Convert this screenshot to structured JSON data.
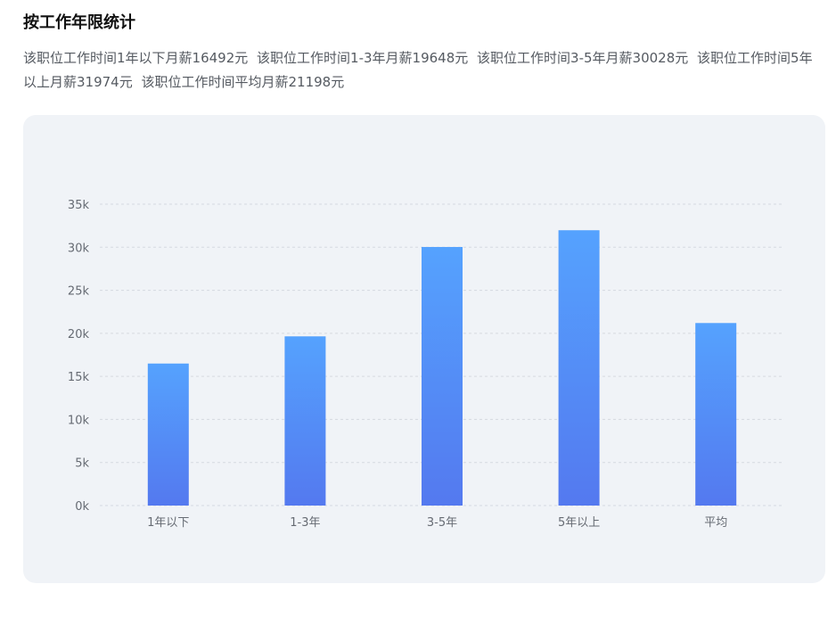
{
  "page": {
    "title": "按工作年限统计",
    "summary": [
      "该职位工作时间1年以下月薪16492元",
      "该职位工作时间1-3年月薪19648元",
      "该职位工作时间3-5年月薪30028元",
      "该职位工作时间5年以上月薪31974元",
      "该职位工作时间平均月薪21198元"
    ]
  },
  "chart_data": {
    "type": "bar",
    "categories": [
      "1年以下",
      "1-3年",
      "3-5年",
      "5年以上",
      "平均"
    ],
    "values": [
      16492,
      19648,
      30028,
      31974,
      21198
    ],
    "title": "",
    "xlabel": "",
    "ylabel": "",
    "ylim": [
      0,
      35000
    ],
    "y_ticks": [
      0,
      5000,
      10000,
      15000,
      20000,
      25000,
      30000,
      35000
    ],
    "y_tick_labels": [
      "0k",
      "5k",
      "10k",
      "15k",
      "20k",
      "25k",
      "30k",
      "35k"
    ],
    "grid": true,
    "legend": "none",
    "colors": {
      "bar_top": "#55a2fe",
      "bar_bottom": "#5479ef",
      "grid": "#d5d9e0",
      "tick_text": "#666b73"
    }
  }
}
